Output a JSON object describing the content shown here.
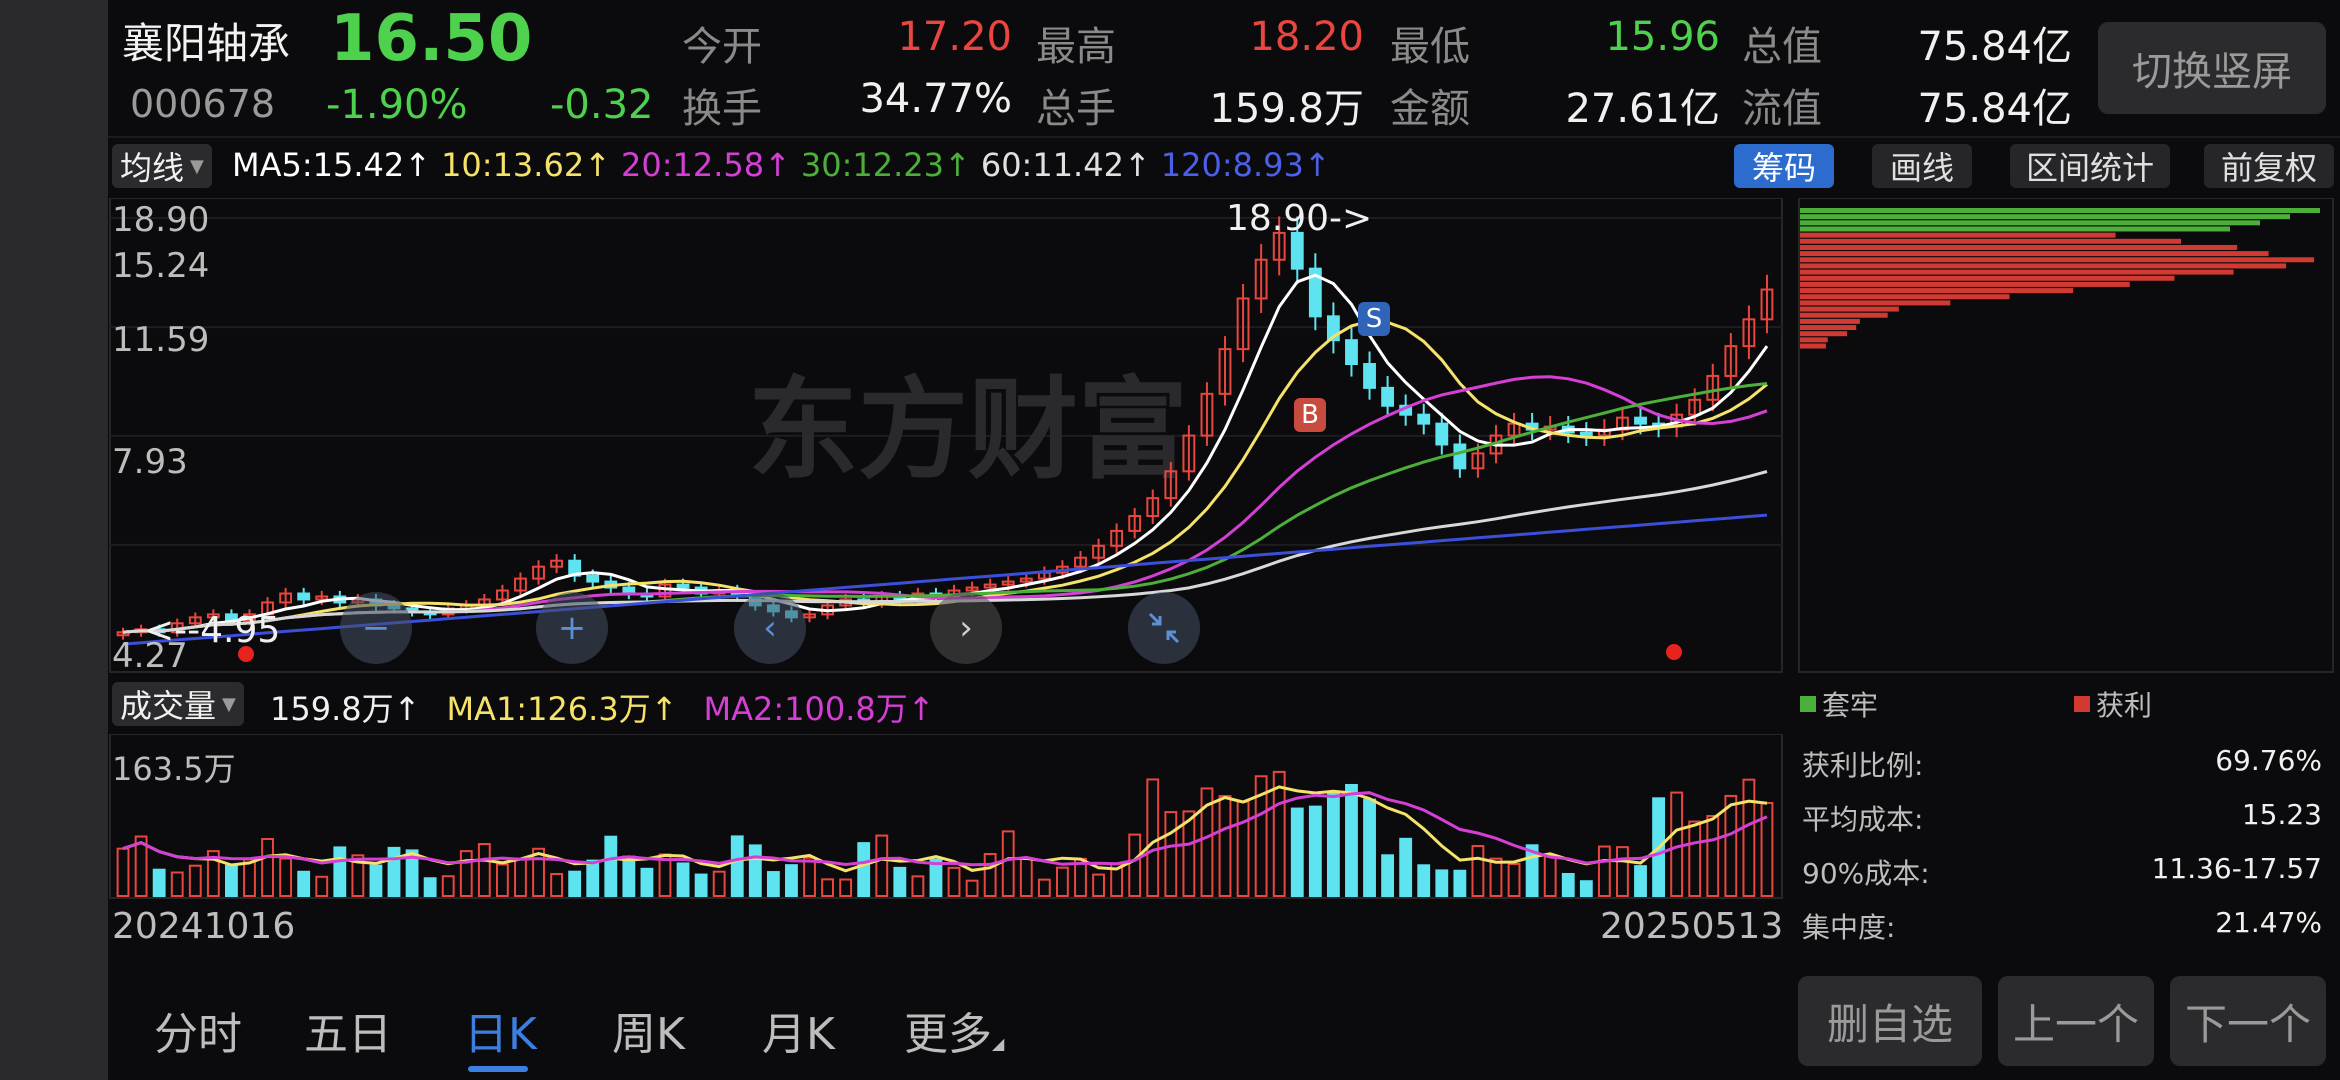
{
  "stock": {
    "name": "襄阳轴承",
    "price": "16.50",
    "code": "000678",
    "change_pct": "-1.90%",
    "change_amt": "-0.32"
  },
  "quote": {
    "open_label": "今开",
    "open": "17.20",
    "high_label": "最高",
    "high": "18.20",
    "low_label": "最低",
    "low": "15.96",
    "mktcap_label": "总值",
    "mktcap": "75.84亿",
    "turnover_label": "换手",
    "turnover": "34.77%",
    "volume_label": "总手",
    "volume": "159.8万",
    "amount_label": "金额",
    "amount": "27.61亿",
    "float_label": "流值",
    "float": "75.84亿"
  },
  "switch_button": "切换竖屏",
  "ma_bar": {
    "dropdown": "均线",
    "ma5": "MA5:15.42↑",
    "ma10": "10:13.62↑",
    "ma20": "20:12.58↑",
    "ma30": "30:12.23↑",
    "ma60": "60:11.42↑",
    "ma120": "120:8.93↑"
  },
  "tools": {
    "chips": "筹码",
    "draw": "画线",
    "range": "区间统计",
    "adjust": "前复权"
  },
  "price_axis": [
    "18.90",
    "15.24",
    "11.59",
    "7.93",
    "4.27"
  ],
  "annotations": {
    "high_marker": "18.90->",
    "low_marker": "<--4.95",
    "buy_badge": "B",
    "sell_badge": "S"
  },
  "watermark": "东方财富",
  "volume_bar": {
    "dropdown": "成交量",
    "vol": "159.8万↑",
    "ma1": "MA1:126.3万↑",
    "ma2": "MA2:100.8万↑",
    "axis_top": "163.5万"
  },
  "dates": {
    "start": "20241016",
    "end": "20250513"
  },
  "chips_panel": {
    "legend_trapped": "套牢",
    "legend_profit": "获利",
    "rows": [
      {
        "label": "获利比例:",
        "value": "69.76%"
      },
      {
        "label": "平均成本:",
        "value": "15.23"
      },
      {
        "label": "90%成本:",
        "value": "11.36-17.57"
      },
      {
        "label": "集中度:",
        "value": "21.47%"
      }
    ]
  },
  "bottom_tabs": [
    "分时",
    "五日",
    "日K",
    "周K",
    "月K",
    "更多"
  ],
  "active_tab": "日K",
  "actions": {
    "remove": "删自选",
    "prev": "上一个",
    "next": "下一个"
  },
  "colors": {
    "up": "#e8463e",
    "down": "#5ee3f0",
    "ma5": "#ffffff",
    "ma10": "#f5e26a",
    "ma20": "#d43fd4",
    "ma30": "#4caf3a",
    "ma60": "#d8d8d8",
    "ma120": "#3b4fd8",
    "accent": "#3d7fe0"
  },
  "chart_data": {
    "type": "candlestick",
    "x_range": [
      "20241016",
      "20250513"
    ],
    "ylim": [
      4.27,
      18.9
    ],
    "ma": {
      "MA5": 15.42,
      "MA10": 13.62,
      "MA20": 12.58,
      "MA30": 12.23,
      "MA60": 11.42,
      "MA120": 8.93
    },
    "closes_approx": [
      5.0,
      5.1,
      5.0,
      5.3,
      5.5,
      5.6,
      5.4,
      5.6,
      6.0,
      6.3,
      6.1,
      6.2,
      6.0,
      6.1,
      5.9,
      5.8,
      5.7,
      5.6,
      5.8,
      5.9,
      6.1,
      6.4,
      6.8,
      7.2,
      7.4,
      6.9,
      6.7,
      6.5,
      6.3,
      6.2,
      6.6,
      6.5,
      6.3,
      6.4,
      6.2,
      5.9,
      5.7,
      5.5,
      5.6,
      5.9,
      6.1,
      6.0,
      6.2,
      6.1,
      6.3,
      6.2,
      6.4,
      6.5,
      6.6,
      6.7,
      6.8,
      7.0,
      7.2,
      7.5,
      7.9,
      8.4,
      8.9,
      9.5,
      10.4,
      11.6,
      13.0,
      14.5,
      16.2,
      17.5,
      18.4,
      17.2,
      15.6,
      14.8,
      14.0,
      13.2,
      12.6,
      12.3,
      12.0,
      11.3,
      10.5,
      11.0,
      11.6,
      12.0,
      11.8,
      11.9,
      11.7,
      11.6,
      11.8,
      12.2,
      12.0,
      11.9,
      12.3,
      12.8,
      13.6,
      14.6,
      15.5,
      16.5
    ],
    "volume_ylim": [
      0,
      "163.5万"
    ]
  }
}
